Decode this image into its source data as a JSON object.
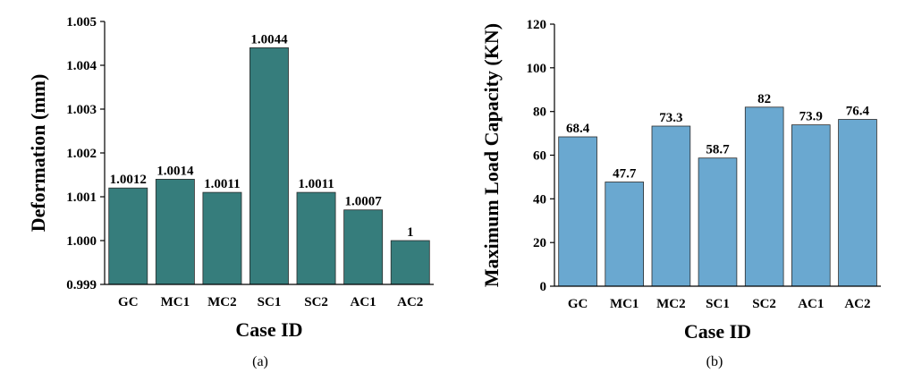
{
  "chart_data": [
    {
      "type": "bar",
      "panel_label": "(a)",
      "categories": [
        "GC",
        "MC1",
        "MC2",
        "SC1",
        "SC2",
        "AC1",
        "AC2"
      ],
      "values": [
        1.0012,
        1.0014,
        1.0011,
        1.0044,
        1.0011,
        1.0007,
        1.0
      ],
      "data_labels": [
        "1.0012",
        "1.0014",
        "1.0011",
        "1.0044",
        "1.0011",
        "1.0007",
        "1"
      ],
      "xlabel": "Case ID",
      "ylabel": "Deformation (mm)",
      "ylim": [
        0.999,
        1.005
      ],
      "yticks": [
        0.999,
        1.0,
        1.001,
        1.002,
        1.003,
        1.004,
        1.005
      ],
      "ytick_labels": [
        "0.999",
        "1.000",
        "1.001",
        "1.002",
        "1.003",
        "1.004",
        "1.005"
      ],
      "bar_color": "#367d7c",
      "grid": false
    },
    {
      "type": "bar",
      "panel_label": "(b)",
      "categories": [
        "GC",
        "MC1",
        "MC2",
        "SC1",
        "SC2",
        "AC1",
        "AC2"
      ],
      "values": [
        68.4,
        47.7,
        73.3,
        58.7,
        82,
        73.9,
        76.4
      ],
      "data_labels": [
        "68.4",
        "47.7",
        "73.3",
        "58.7",
        "82",
        "73.9",
        "76.4"
      ],
      "xlabel": "Case ID",
      "ylabel": "Maximum Load Capacity (KN)",
      "ylim": [
        0,
        120
      ],
      "yticks": [
        0,
        20,
        40,
        60,
        80,
        100,
        120
      ],
      "ytick_labels": [
        "0",
        "20",
        "40",
        "60",
        "80",
        "100",
        "120"
      ],
      "bar_color": "#6aa8d0",
      "grid": false
    }
  ]
}
